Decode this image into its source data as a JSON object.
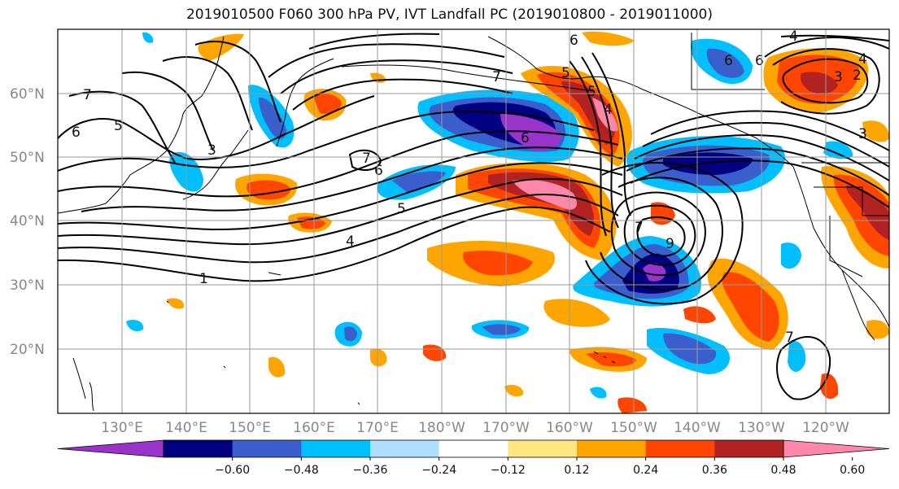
{
  "title": "2019010500 F060 300 hPa PV, IVT Landfall PC (2019010800 - 2019011000)",
  "lat_labels": [
    "60°N",
    "50°N",
    "40°N",
    "30°N",
    "20°N"
  ],
  "lon_labels": [
    "130°E",
    "140°E",
    "150°E",
    "160°E",
    "170°E",
    "180°W",
    "170°W",
    "160°W",
    "150°W",
    "140°W",
    "130°W",
    "120°W"
  ],
  "colorbar": {
    "ticks": [
      "−0.60",
      "−0.48",
      "−0.36",
      "−0.24",
      "−0.12",
      "0.12",
      "0.24",
      "0.36",
      "0.48",
      "0.60"
    ],
    "colors": [
      "#9933cc",
      "#000080",
      "#3a5fcd",
      "#00bfff",
      "#b0e0ff",
      "#ffffff",
      "#ffe680",
      "#ffa500",
      "#ff4500",
      "#b22222",
      "#ff88aa"
    ]
  },
  "contour_labels": [
    "7",
    "6",
    "5",
    "3",
    "7",
    "6",
    "5",
    "4",
    "1",
    "6",
    "5",
    "5",
    "4",
    "6",
    "7",
    "7",
    "6",
    "9",
    "4",
    "6",
    "4",
    "3",
    "3",
    "2",
    "7"
  ],
  "palette": {
    "purple": "#9933cc",
    "navy": "#000080",
    "blue": "#3a5fcd",
    "sky": "#00bfff",
    "pale": "#b0e0ff",
    "yellow": "#ffe680",
    "orange": "#ffa500",
    "red": "#ff4500",
    "dark": "#b22222",
    "pink": "#ff88aa"
  }
}
